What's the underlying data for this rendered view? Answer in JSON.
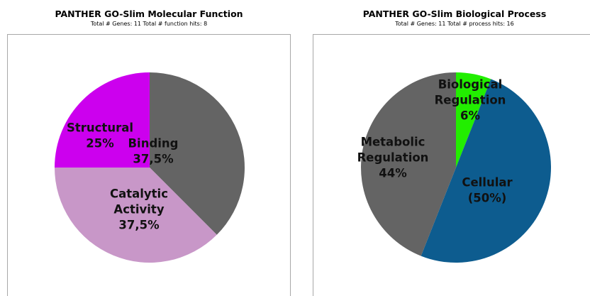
{
  "chart_data": [
    {
      "type": "pie",
      "title": "PANTHER GO-Slim Molecular Function",
      "subtitle": "Total # Genes: 11    Total # function hits: 8",
      "slices": [
        {
          "label": [
            "Binding",
            "37,5%"
          ],
          "value": 37.5,
          "color": "#646464"
        },
        {
          "label": [
            "Catalytic",
            "Activity",
            "37,5%"
          ],
          "value": 37.5,
          "color": "#c897c8"
        },
        {
          "label": [
            "Structural",
            "25%"
          ],
          "value": 25,
          "color": "#cc00ee"
        }
      ]
    },
    {
      "type": "pie",
      "title": "PANTHER GO-Slim Biological Process",
      "subtitle": "Total # Genes: 11    Total # process hits: 16",
      "slices": [
        {
          "label": [
            "Biological",
            "Regulation",
            "6%"
          ],
          "value": 6,
          "color": "#22ee00"
        },
        {
          "label": [
            "Cellular",
            "(50%)"
          ],
          "value": 50,
          "color": "#0d5c8f"
        },
        {
          "label": [
            "Metabolic",
            "Regulation",
            "44%"
          ],
          "value": 44,
          "color": "#646464"
        }
      ]
    }
  ]
}
